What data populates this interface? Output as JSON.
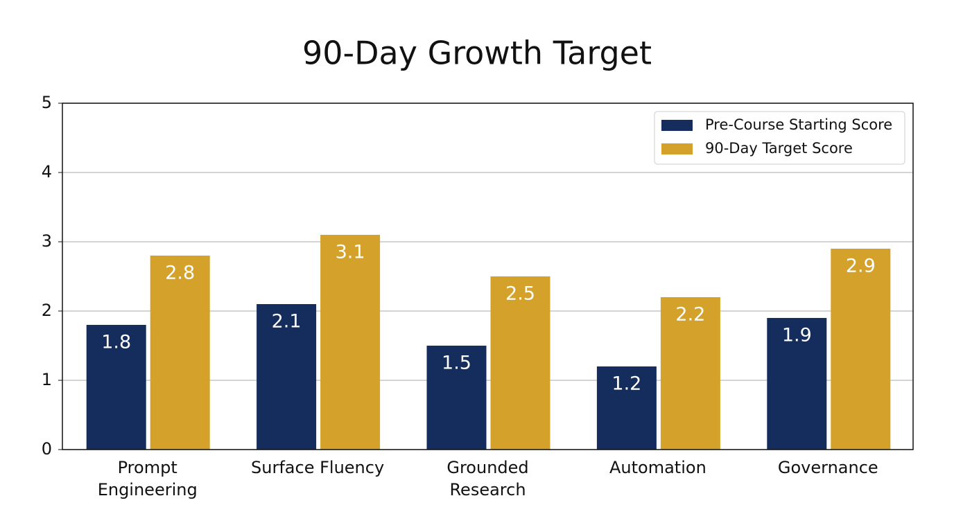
{
  "chart_data": {
    "type": "bar",
    "title": "90-Day Growth Target",
    "categories": [
      "Prompt Engineering",
      "Surface Fluency",
      "Grounded Research",
      "Automation",
      "Governance"
    ],
    "series": [
      {
        "name": "Pre-Course Starting Score",
        "color": "#142d5c",
        "values": [
          1.8,
          2.1,
          1.5,
          1.2,
          1.9
        ]
      },
      {
        "name": "90-Day Target Score",
        "color": "#d4a22a",
        "values": [
          2.8,
          3.1,
          2.5,
          2.2,
          2.9
        ]
      }
    ],
    "ylim": [
      0,
      5
    ],
    "yticks": [
      0,
      1,
      2,
      3,
      4,
      5
    ],
    "grid": true,
    "legend": "upper right"
  }
}
